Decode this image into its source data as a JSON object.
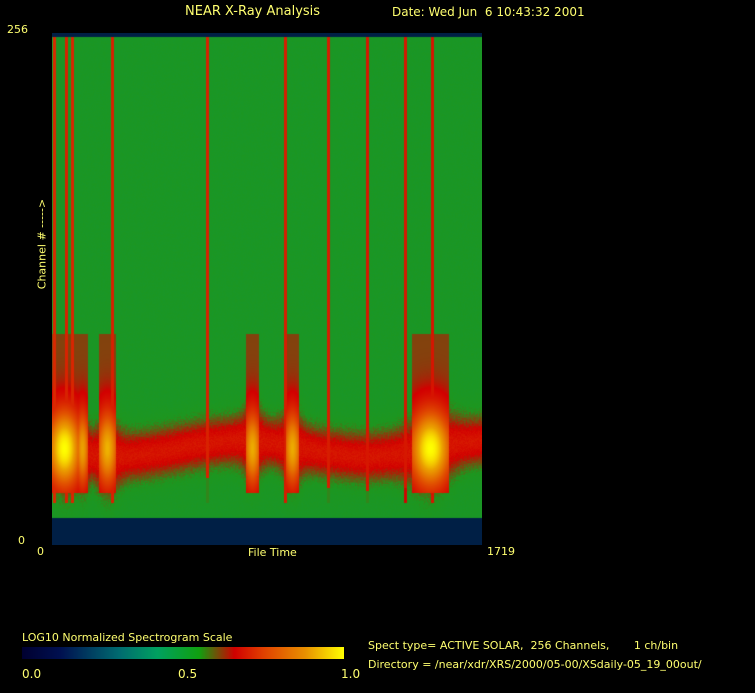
{
  "header": {
    "title": "NEAR X-Ray Analysis",
    "date": "Date: Wed Jun  6 10:43:32 2001"
  },
  "chart_data": {
    "type": "heatmap",
    "title": "NEAR X-Ray Analysis",
    "xlabel": "File Time",
    "ylabel": "Channel # ----->",
    "xlim": [
      0,
      1719
    ],
    "ylim": [
      0,
      256
    ],
    "x_tick_labels": [
      "0",
      "1719"
    ],
    "y_tick_labels": [
      "0",
      "256"
    ],
    "colorscale": {
      "title": "LOG10 Normalized Spectrogram Scale",
      "range": [
        0.0,
        1.0
      ],
      "tick_labels": [
        "0.0",
        "0.5",
        "1.0"
      ],
      "colors": [
        "#000030",
        "#006a70",
        "#10a010",
        "#d00000",
        "#e89000",
        "#ffff00"
      ]
    },
    "background_color": "#1a9a2a"
  },
  "info": {
    "spect_type": "Spect type= ACTIVE SOLAR,  256 Channels,       1 ch/bin",
    "directory": "Directory = /near/xdr/XRS/2000/05-00/XSdaily-05_19_00out/"
  }
}
